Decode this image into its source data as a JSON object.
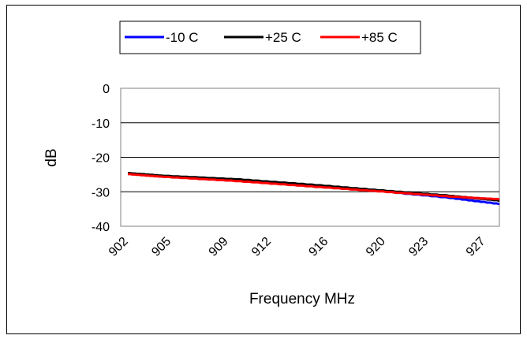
{
  "chart_data": {
    "type": "line",
    "xlabel": "Frequency MHz",
    "ylabel": "dB",
    "ylim": [
      -40,
      0
    ],
    "yticks": [
      0,
      -10,
      -20,
      -30,
      -40
    ],
    "xlim": [
      902,
      928.5
    ],
    "xticks": [
      902,
      905,
      909,
      912,
      916,
      920,
      923,
      927
    ],
    "grid": "horizontal",
    "legend": "top",
    "series": [
      {
        "name": "-10 C",
        "color": "#0000ff",
        "x": [
          902.5,
          905,
          910,
          915,
          920,
          925,
          928.5
        ],
        "y": [
          -24.8,
          -25.6,
          -26.8,
          -28.2,
          -29.8,
          -31.8,
          -33.6
        ]
      },
      {
        "name": "+25 C",
        "color": "#000000",
        "x": [
          902.5,
          905,
          910,
          915,
          920,
          925,
          928.5
        ],
        "y": [
          -24.6,
          -25.4,
          -26.4,
          -27.9,
          -29.6,
          -31.2,
          -32.6
        ]
      },
      {
        "name": "+85 C",
        "color": "#ff0000",
        "x": [
          902.5,
          905,
          910,
          915,
          920,
          925,
          928.5
        ],
        "y": [
          -24.9,
          -25.7,
          -26.9,
          -28.4,
          -29.9,
          -31.4,
          -32.2
        ]
      }
    ]
  }
}
